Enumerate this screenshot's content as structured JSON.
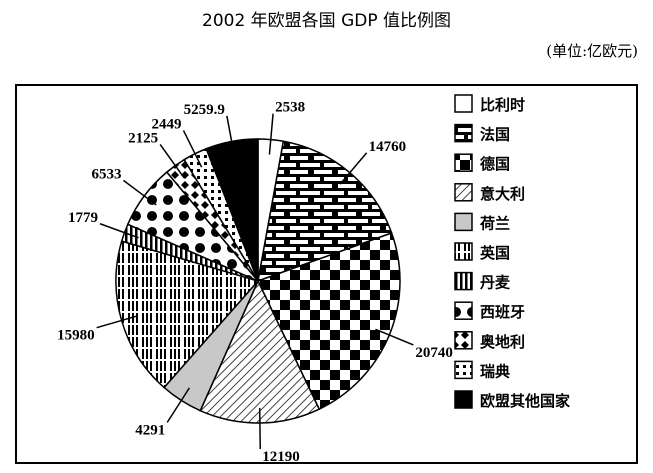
{
  "chart_data": {
    "type": "pie",
    "title": "2002 年欧盟各国 GDP 值比例图",
    "unit": "(单位:亿欧元)",
    "start": "top",
    "direction": "clockwise",
    "legend_position": "right",
    "slices": [
      {
        "name": "比利时",
        "value": 2538,
        "pattern": "white"
      },
      {
        "name": "法国",
        "value": 14760,
        "pattern": "brick"
      },
      {
        "name": "德国",
        "value": 20740,
        "pattern": "checker"
      },
      {
        "name": "意大利",
        "value": 12190,
        "pattern": "diagonal-hatch"
      },
      {
        "name": "荷兰",
        "value": 4291,
        "pattern": "light-gray"
      },
      {
        "name": "英国",
        "value": 15980,
        "pattern": "dash-lines"
      },
      {
        "name": "丹麦",
        "value": 1779,
        "pattern": "vertical-stripes"
      },
      {
        "name": "西班牙",
        "value": 6533,
        "pattern": "dots"
      },
      {
        "name": "奥地利",
        "value": 2125,
        "pattern": "diamonds"
      },
      {
        "name": "瑞典",
        "value": 2449,
        "pattern": "grid"
      },
      {
        "name": "欧盟其他国家",
        "value": 5259.9,
        "pattern": "black"
      }
    ],
    "data_labels": [
      "2538",
      "14760",
      "20740",
      "12190",
      "4291",
      "15980",
      "1779",
      "6533",
      "2125",
      "2449",
      "5259.9"
    ]
  }
}
